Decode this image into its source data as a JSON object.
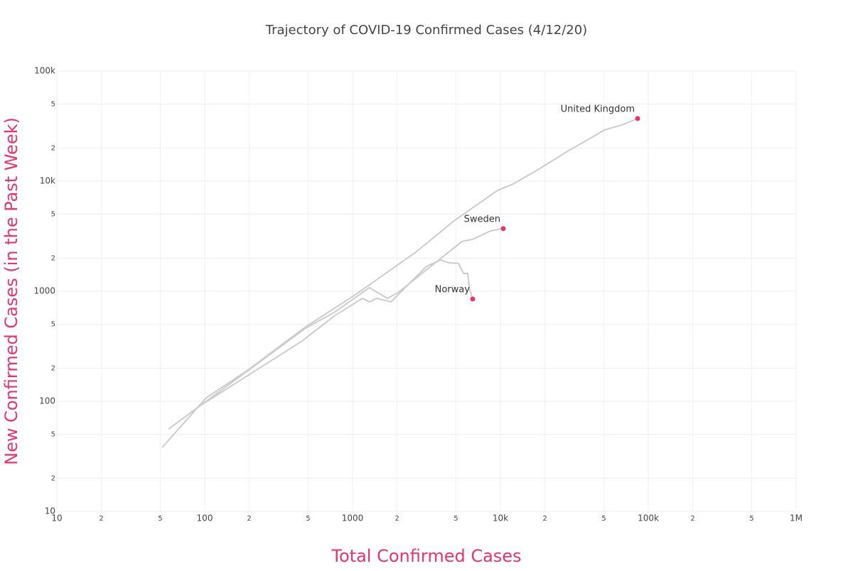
{
  "chart_data": {
    "type": "line",
    "title": "Trajectory of COVID-19 Confirmed Cases (4/12/20)",
    "x_label": "Total Confirmed Cases",
    "y_label": "New Confirmed Cases (in the Past Week)",
    "xscale": "log",
    "yscale": "log",
    "grid": true,
    "marker_color": "#e8336d",
    "axis_label_color": "#e8336d",
    "xlim": [
      10,
      1000000
    ],
    "xticks": [
      10,
      {
        "value": 20,
        "label": "2"
      },
      {
        "value": 50,
        "label": "5"
      },
      100,
      {
        "value": 200,
        "label": "2"
      },
      {
        "value": 500,
        "label": "5"
      },
      1000,
      {
        "value": 2000,
        "label": "2"
      },
      {
        "value": 5000,
        "label": "5"
      },
      {
        "value": 10000,
        "label": "10k"
      },
      {
        "value": 20000,
        "label": "2"
      },
      {
        "value": 50000,
        "label": "5"
      },
      {
        "value": 100000,
        "label": "100k"
      },
      {
        "value": 200000,
        "label": "2"
      },
      {
        "value": 500000,
        "label": "5"
      },
      {
        "value": 1000000,
        "label": "1M"
      }
    ],
    "ylim": [
      10,
      100000
    ],
    "yticks": [
      10,
      {
        "value": 20,
        "label": "2"
      },
      {
        "value": 50,
        "label": "5"
      },
      100,
      {
        "value": 200,
        "label": "2"
      },
      {
        "value": 500,
        "label": "5"
      },
      1000,
      {
        "value": 2000,
        "label": "2"
      },
      {
        "value": 5000,
        "label": "5"
      },
      {
        "value": 10000,
        "label": "10k"
      },
      {
        "value": 20000,
        "label": "2"
      },
      {
        "value": 50000,
        "label": "5"
      },
      {
        "value": 100000,
        "label": "100k"
      }
    ],
    "series": [
      {
        "name": "United Kingdom",
        "color": "#cccccc",
        "x": [
          51.5,
          102,
          199,
          482,
          1045,
          2680,
          4920,
          9570,
          11940,
          17600,
          28900,
          42700,
          50400,
          66400,
          84700
        ],
        "values": [
          38,
          107,
          195,
          475,
          929,
          2265,
          4415,
          8240,
          9290,
          12500,
          18900,
          25500,
          29100,
          32400,
          37000
        ]
      },
      {
        "name": "Sweden",
        "color": "#cccccc",
        "x": [
          57,
          92,
          482,
          750,
          1300,
          1720,
          2030,
          3160,
          5500,
          6490,
          8570,
          10450
        ],
        "values": [
          56,
          90,
          462,
          640,
          1077,
          861,
          970,
          1563,
          2830,
          2960,
          3530,
          3700
        ]
      },
      {
        "name": "Norway",
        "color": "#cccccc",
        "x": [
          92,
          456,
          750,
          1166,
          1300,
          1455,
          1820,
          3160,
          3945,
          4500,
          5200,
          5620,
          6010,
          6140,
          6490
        ],
        "values": [
          90,
          353,
          594,
          861,
          800,
          861,
          800,
          1680,
          1920,
          1810,
          1790,
          1450,
          1450,
          1077,
          849
        ]
      }
    ]
  }
}
